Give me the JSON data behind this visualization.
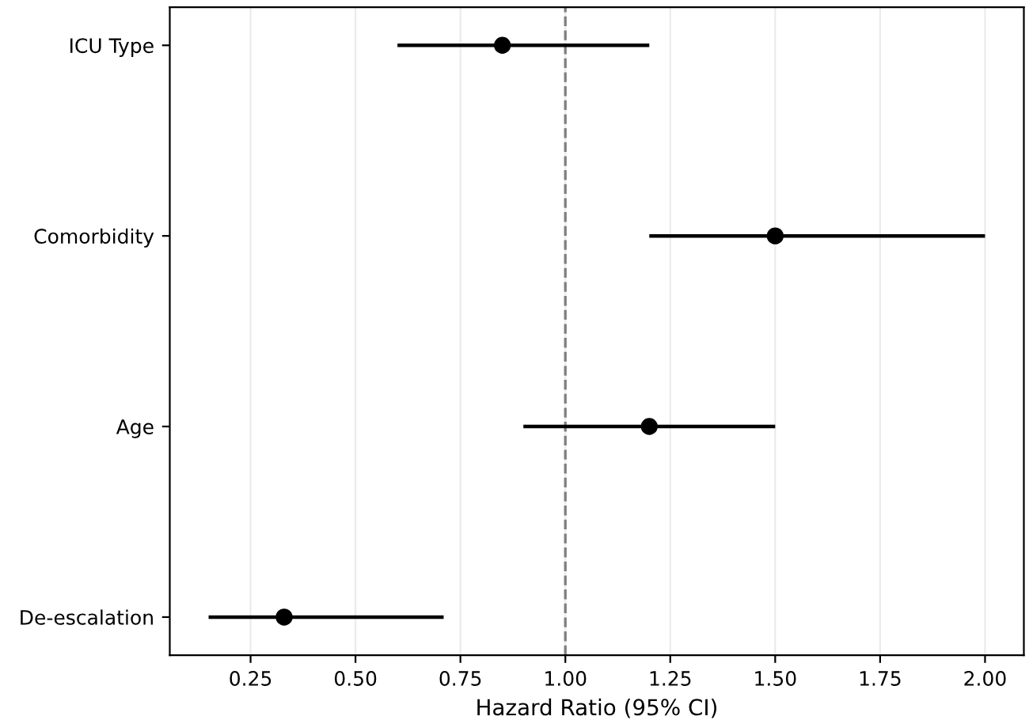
{
  "chart_data": {
    "type": "scatter",
    "orientation": "horizontal",
    "categories": [
      "ICU Type",
      "Comorbidity",
      "Age",
      "De-escalation"
    ],
    "series": [
      {
        "color": "#000000",
        "values": [
          0.85,
          1.5,
          1.2,
          0.33
        ],
        "errors": [
          [
            0.6,
            1.2
          ],
          [
            1.2,
            2.0
          ],
          [
            0.9,
            1.5
          ],
          [
            0.15,
            0.71
          ]
        ]
      }
    ],
    "xlabel": "Hazard Ratio (95% CI)",
    "xlim": [
      0.0575,
      2.0925
    ],
    "xticks": [
      0.25,
      {
        "value": 0.5,
        "label": "0.50"
      },
      0.75,
      {
        "value": 1.0,
        "label": "1.00"
      },
      1.25,
      {
        "value": 1.5,
        "label": "1.50"
      },
      1.75,
      {
        "value": 2.0,
        "label": "2.00"
      }
    ],
    "ref_lines": [
      {
        "axis": "x",
        "value": 1.0,
        "color": "#808080",
        "line_style": "dashed"
      }
    ],
    "grid": "x",
    "marker": "circle"
  }
}
